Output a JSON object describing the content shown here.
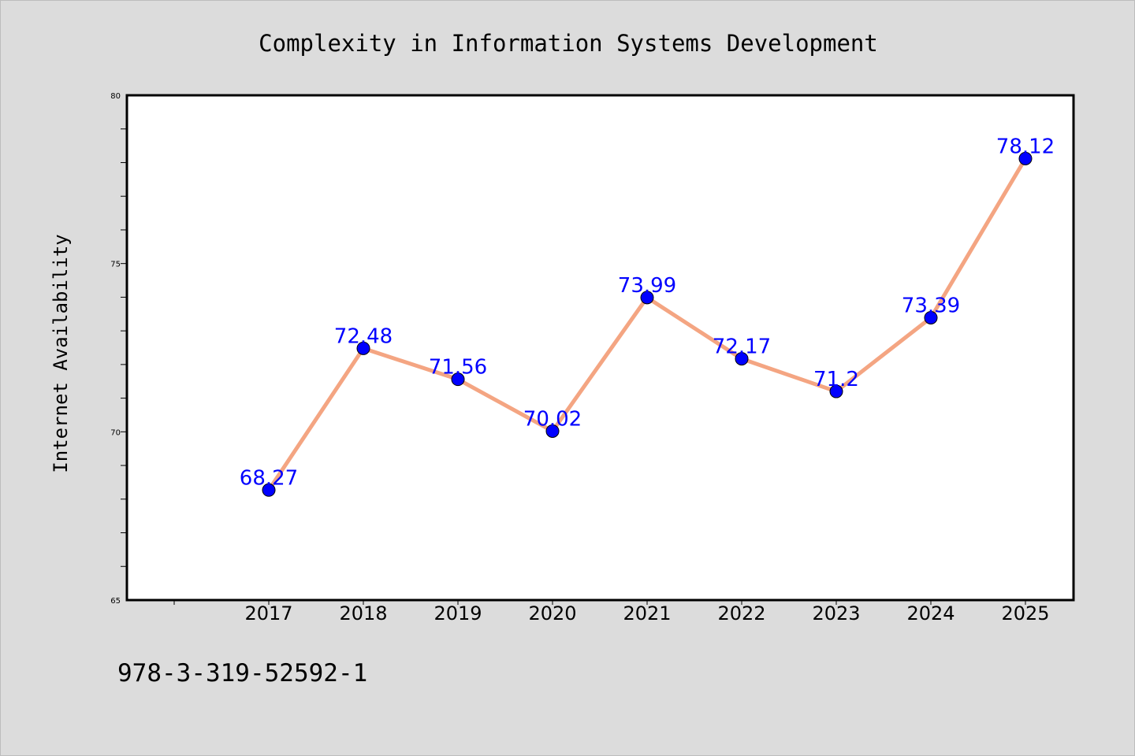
{
  "chart_data": {
    "type": "line",
    "title": "Complexity in Information Systems Development",
    "xlabel": "",
    "ylabel": "Internet Availability",
    "categories": [
      "2017",
      "2018",
      "2019",
      "2020",
      "2021",
      "2022",
      "2023",
      "2024",
      "2025"
    ],
    "series": [
      {
        "values": [
          68.27,
          72.48,
          71.56,
          70.02,
          73.99,
          72.17,
          71.2,
          73.39,
          78.12
        ],
        "labels": [
          "68.27",
          "72.48",
          "71.56",
          "70.02",
          "73.99",
          "72.17",
          "71.2",
          "73.39",
          "78.12"
        ],
        "line_color": "#f4a582",
        "marker_color": "#0000ff"
      }
    ],
    "ylim": [
      65,
      80
    ],
    "yticks": [
      "65",
      "70",
      "75",
      "80"
    ],
    "grid": false,
    "legend": "none"
  },
  "footnote": "978-3-319-52592-1",
  "colors": {
    "background": "#dcdcdc",
    "plot_area": "#ffffff",
    "line": "#f4a582",
    "marker": "#0000ff",
    "data_label": "#0000ff"
  }
}
